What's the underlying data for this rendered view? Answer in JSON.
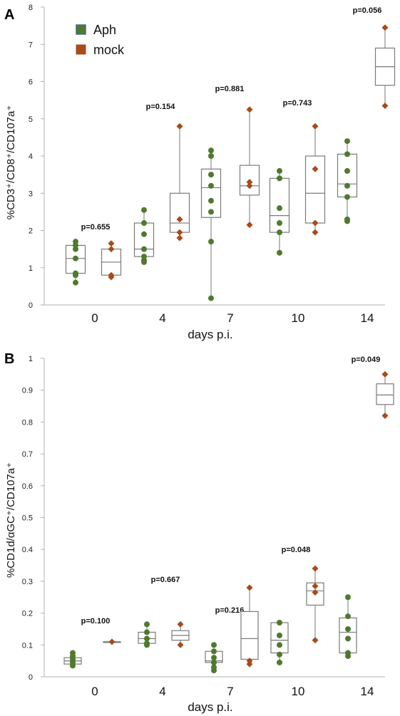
{
  "chart_data": [
    {
      "type": "box",
      "panel_label": "A",
      "ylabel": "%CD3⁺/CD8⁺/CD107a⁺",
      "xlabel": "days p.i.",
      "ylim": [
        0,
        8
      ],
      "yticks": [
        "0",
        "1",
        "2",
        "3",
        "4",
        "5",
        "6",
        "7",
        "8"
      ],
      "categories": [
        "0",
        "4",
        "7",
        "10",
        "14"
      ],
      "legend": [
        {
          "name": "Aph",
          "color": "#4e7a2e"
        },
        {
          "name": "mock",
          "color": "#a84a1a"
        }
      ],
      "p_values": [
        "p=0.655",
        "p=0.154",
        "p=0.881",
        "p=0.743",
        "p=0.056"
      ],
      "series": [
        {
          "name": "Aph",
          "boxes": [
            {
              "category": "0",
              "min": 0.6,
              "q1": 0.85,
              "median": 1.25,
              "q3": 1.6,
              "max": 1.7,
              "points": [
                0.6,
                0.8,
                0.85,
                1.25,
                1.5,
                1.6,
                1.7
              ]
            },
            {
              "category": "4",
              "min": 1.15,
              "q1": 1.3,
              "median": 1.5,
              "q3": 2.2,
              "max": 2.55,
              "points": [
                1.15,
                1.2,
                1.3,
                1.5,
                1.9,
                2.2,
                2.55
              ]
            },
            {
              "category": "7",
              "min": 0.18,
              "q1": 2.35,
              "median": 3.15,
              "q3": 3.65,
              "max": 4.15,
              "points": [
                0.18,
                1.7,
                2.5,
                2.8,
                3.2,
                3.5,
                4.0,
                4.15
              ]
            },
            {
              "category": "10",
              "min": 1.4,
              "q1": 1.95,
              "median": 2.4,
              "q3": 3.4,
              "max": 3.6,
              "points": [
                1.4,
                1.95,
                2.2,
                2.6,
                3.4,
                3.6
              ]
            },
            {
              "category": "14",
              "min": 2.25,
              "q1": 2.9,
              "median": 3.25,
              "q3": 4.05,
              "max": 4.4,
              "points": [
                2.25,
                2.3,
                2.9,
                3.2,
                3.6,
                4.05,
                4.4
              ]
            }
          ]
        },
        {
          "name": "mock",
          "boxes": [
            {
              "category": "0",
              "min": 0.75,
              "q1": 0.8,
              "median": 1.15,
              "q3": 1.5,
              "max": 1.65,
              "points": [
                0.75,
                0.8,
                1.5,
                1.65
              ]
            },
            {
              "category": "4",
              "min": 1.8,
              "q1": 1.95,
              "median": 2.2,
              "q3": 3.0,
              "max": 4.8,
              "points": [
                1.8,
                1.95,
                2.3,
                4.8
              ]
            },
            {
              "category": "7",
              "min": 2.15,
              "q1": 2.95,
              "median": 3.2,
              "q3": 3.75,
              "max": 5.25,
              "points": [
                2.15,
                3.2,
                3.3,
                5.25
              ]
            },
            {
              "category": "10",
              "min": 1.95,
              "q1": 2.2,
              "median": 3.0,
              "q3": 4.0,
              "max": 4.8,
              "points": [
                1.95,
                2.2,
                3.65,
                4.8
              ]
            },
            {
              "category": "14",
              "min": 5.35,
              "q1": 5.9,
              "median": 6.4,
              "q3": 6.9,
              "max": 7.45,
              "points": [
                5.35,
                7.45
              ]
            }
          ]
        }
      ]
    },
    {
      "type": "box",
      "panel_label": "B",
      "ylabel": "%CD1d/αGC⁺/CD107a⁺",
      "xlabel": "days p.i.",
      "ylim": [
        0,
        1
      ],
      "yticks": [
        "0",
        "0.1",
        "0.2",
        "0.3",
        "0.4",
        "0.5",
        "0.6",
        "0.7",
        "0.8",
        "0.9",
        "1"
      ],
      "categories": [
        "0",
        "4",
        "7",
        "10",
        "14"
      ],
      "p_values": [
        "p=0.100",
        "p=0.667",
        "p=0.216",
        "p=0.048",
        "p=0.049"
      ],
      "series": [
        {
          "name": "Aph",
          "boxes": [
            {
              "category": "0",
              "min": 0.035,
              "q1": 0.04,
              "median": 0.05,
              "q3": 0.06,
              "max": 0.075,
              "points": [
                0.035,
                0.045,
                0.055,
                0.065,
                0.075
              ]
            },
            {
              "category": "4",
              "min": 0.1,
              "q1": 0.105,
              "median": 0.12,
              "q3": 0.14,
              "max": 0.165,
              "points": [
                0.1,
                0.105,
                0.12,
                0.14,
                0.165
              ]
            },
            {
              "category": "7",
              "min": 0.02,
              "q1": 0.045,
              "median": 0.05,
              "q3": 0.08,
              "max": 0.1,
              "points": [
                0.02,
                0.03,
                0.045,
                0.06,
                0.08,
                0.1
              ]
            },
            {
              "category": "10",
              "min": 0.045,
              "q1": 0.075,
              "median": 0.115,
              "q3": 0.17,
              "max": 0.17,
              "points": [
                0.045,
                0.07,
                0.1,
                0.13,
                0.17
              ]
            },
            {
              "category": "14",
              "min": 0.065,
              "q1": 0.075,
              "median": 0.14,
              "q3": 0.185,
              "max": 0.25,
              "points": [
                0.065,
                0.075,
                0.12,
                0.15,
                0.19,
                0.25
              ]
            }
          ]
        },
        {
          "name": "mock",
          "boxes": [
            {
              "category": "0",
              "min": 0.11,
              "q1": 0.11,
              "median": 0.11,
              "q3": 0.11,
              "max": 0.11,
              "points": [
                0.11
              ]
            },
            {
              "category": "4",
              "min": 0.1,
              "q1": 0.115,
              "median": 0.13,
              "q3": 0.145,
              "max": 0.165,
              "points": [
                0.1,
                0.165
              ]
            },
            {
              "category": "7",
              "min": 0.04,
              "q1": 0.055,
              "median": 0.12,
              "q3": 0.205,
              "max": 0.28,
              "points": [
                0.04,
                0.05,
                0.28
              ]
            },
            {
              "category": "10",
              "min": 0.115,
              "q1": 0.225,
              "median": 0.27,
              "q3": 0.295,
              "max": 0.34,
              "points": [
                0.115,
                0.265,
                0.285,
                0.34
              ]
            },
            {
              "category": "14",
              "min": 0.82,
              "q1": 0.855,
              "median": 0.885,
              "q3": 0.92,
              "max": 0.95,
              "points": [
                0.82,
                0.95
              ]
            }
          ]
        }
      ]
    }
  ]
}
